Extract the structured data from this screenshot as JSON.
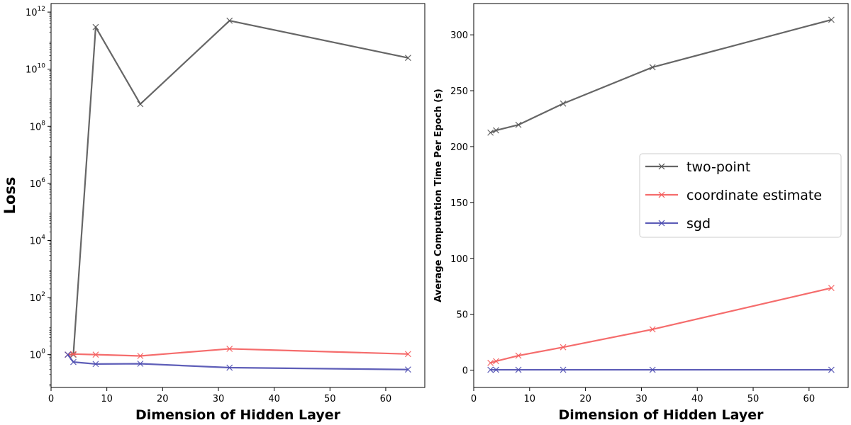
{
  "chart_data": [
    {
      "type": "line",
      "xlabel": "Dimension of Hidden Layer",
      "ylabel": "Loss",
      "yscale": "log",
      "xlim": [
        0,
        67
      ],
      "ylim_exponent": [
        -1.15,
        12.3
      ],
      "xticks": [
        "0",
        "10",
        "20",
        "30",
        "40",
        "50",
        "60"
      ],
      "xtick_values": [
        0,
        10,
        20,
        30,
        40,
        50,
        60
      ],
      "yticks": [
        {
          "base": "10",
          "exp": "0"
        },
        {
          "base": "10",
          "exp": "2"
        },
        {
          "base": "10",
          "exp": "4"
        },
        {
          "base": "10",
          "exp": "6"
        },
        {
          "base": "10",
          "exp": "8"
        },
        {
          "base": "10",
          "exp": "10"
        },
        {
          "base": "10",
          "exp": "12"
        }
      ],
      "ytick_exponents": [
        0,
        2,
        4,
        6,
        8,
        10,
        12
      ],
      "grid": false,
      "series": [
        {
          "name": "two-point",
          "color": "#555555",
          "x": [
            3,
            4,
            8,
            16,
            32,
            64
          ],
          "y": [
            1.0,
            1.0,
            300000000000,
            600000000,
            500000000000,
            25000000000
          ]
        },
        {
          "name": "coordinate estimate",
          "color": "#f45c5c",
          "x": [
            3,
            4,
            8,
            16,
            32,
            64
          ],
          "y": [
            1.0,
            1.05,
            1.0,
            0.9,
            1.6,
            1.05
          ]
        },
        {
          "name": "sgd",
          "color": "#4d4db0",
          "x": [
            3,
            4,
            8,
            16,
            32,
            64
          ],
          "y": [
            1.0,
            0.55,
            0.47,
            0.48,
            0.35,
            0.3
          ]
        }
      ]
    },
    {
      "type": "line",
      "xlabel": "Dimension of Hidden Layer",
      "ylabel": "Average Computation Time Per Epoch (s)",
      "xlim": [
        0,
        67
      ],
      "ylim": [
        -15.5,
        328
      ],
      "xticks": [
        "0",
        "10",
        "20",
        "30",
        "40",
        "50",
        "60"
      ],
      "xtick_values": [
        0,
        10,
        20,
        30,
        40,
        50,
        60
      ],
      "yticks": [
        "0",
        "50",
        "100",
        "150",
        "200",
        "250",
        "300"
      ],
      "ytick_values": [
        0,
        50,
        100,
        150,
        200,
        250,
        300
      ],
      "grid": false,
      "legend": {
        "placement": "center-right",
        "entries": [
          "two-point",
          "coordinate estimate",
          "sgd"
        ]
      },
      "series": [
        {
          "name": "two-point",
          "color": "#555555",
          "x": [
            3,
            4,
            8,
            16,
            32,
            64
          ],
          "y": [
            212.5,
            214.5,
            219.5,
            238.5,
            271,
            313.5
          ]
        },
        {
          "name": "coordinate estimate",
          "color": "#f45c5c",
          "x": [
            3,
            4,
            8,
            16,
            32,
            64
          ],
          "y": [
            6.5,
            8,
            13,
            20.5,
            36.5,
            73.5
          ]
        },
        {
          "name": "sgd",
          "color": "#4d4db0",
          "x": [
            3,
            4,
            8,
            16,
            32,
            64
          ],
          "y": [
            0.3,
            0.3,
            0.3,
            0.3,
            0.3,
            0.3
          ]
        }
      ]
    }
  ]
}
